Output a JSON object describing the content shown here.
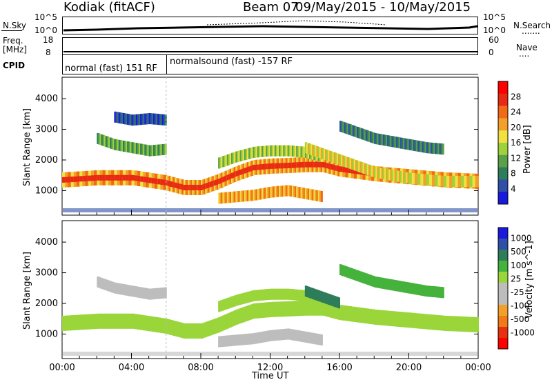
{
  "header": {
    "radar": "Kodiak (fitACF)",
    "beam": "Beam 07",
    "dates": "09/May/2015 - 10/May/2015"
  },
  "sky_panel": {
    "label": "N.Sky",
    "left_ticks": [
      "10^5",
      "10^0"
    ],
    "right_ticks": [
      "10^5",
      "10^0"
    ],
    "right_label": "N.Search",
    "right_dots": "......."
  },
  "freq_panel": {
    "label_line1": "Freq.",
    "label_line2": "[MHz]",
    "left_ticks": [
      "18",
      "8"
    ],
    "right_ticks": [
      "60",
      "0"
    ],
    "right_label": "Nave",
    "right_dots": "....",
    "cpid_label": "CPID"
  },
  "cpid": {
    "mode1": "normal (fast) 151 RF",
    "mode2": "normalsound (fast) -157 RF"
  },
  "colors": {
    "power": [
      "#1a1adc",
      "#2f4fa8",
      "#2e7d5a",
      "#5aa04a",
      "#9fd23a",
      "#f0e040",
      "#f3a02a",
      "#f06a18",
      "#e82a14",
      "#ff0000"
    ],
    "velocity": [
      "#1a1adc",
      "#2f4fa8",
      "#2e7d5a",
      "#45b23c",
      "#9ad53a",
      "#bdbdbd",
      "#bdbdbd",
      "#f3a02a",
      "#f07a18",
      "#e83010",
      "#ff0000"
    ]
  },
  "chart_data": [
    {
      "type": "heatmap",
      "title": "",
      "xlabel": "Time UT",
      "ylabel": "Slant Range [km]",
      "x_ticks": [
        "00:00",
        "04:00",
        "08:00",
        "12:00",
        "16:00",
        "20:00",
        "00:00"
      ],
      "y_ticks": [
        1000,
        2000,
        3000,
        4000
      ],
      "ylim": [
        200,
        4700
      ],
      "xlim_hours": [
        0,
        24
      ],
      "colorbar_label": "Power [dB]",
      "colorbar_ticks": [
        4,
        8,
        12,
        16,
        20,
        24,
        28
      ],
      "colorbar_range": [
        0,
        32
      ],
      "bands": [
        {
          "t": [
            0,
            2,
            4,
            6,
            7,
            8,
            9,
            10,
            11,
            12,
            13,
            14,
            15,
            16,
            18,
            20,
            22,
            24
          ],
          "r": [
            1350,
            1420,
            1420,
            1250,
            1100,
            1100,
            1300,
            1550,
            1750,
            1800,
            1820,
            1850,
            1850,
            1700,
            1550,
            1450,
            1350,
            1300
          ],
          "power": 20
        },
        {
          "t": [
            9,
            10,
            11,
            12,
            13,
            14,
            15
          ],
          "r": [
            750,
            800,
            850,
            950,
            1000,
            900,
            800
          ],
          "power": 22
        },
        {
          "t": [
            2,
            3,
            4,
            5,
            6
          ],
          "r": [
            2700,
            2500,
            2400,
            2300,
            2350
          ],
          "power": 12
        },
        {
          "t": [
            9,
            10,
            11,
            12,
            13,
            14,
            15
          ],
          "r": [
            1900,
            2100,
            2250,
            2300,
            2300,
            2250,
            2100
          ],
          "power": 14
        },
        {
          "t": [
            16,
            17,
            18,
            19,
            20,
            21,
            22
          ],
          "r": [
            3100,
            2900,
            2700,
            2600,
            2500,
            2400,
            2350
          ],
          "power": 8
        },
        {
          "t": [
            14,
            15,
            16,
            17,
            18,
            19,
            20,
            22,
            24
          ],
          "r": [
            2400,
            2200,
            2000,
            1800,
            1600,
            1500,
            1400,
            1300,
            1300
          ],
          "power": 18
        },
        {
          "t": [
            3,
            4,
            5,
            6
          ],
          "r": [
            3400,
            3300,
            3350,
            3300
          ],
          "power": 6
        }
      ]
    },
    {
      "type": "heatmap",
      "title": "",
      "xlabel": "Time UT",
      "ylabel": "Slant Range [km]",
      "x_ticks": [
        "00:00",
        "04:00",
        "08:00",
        "12:00",
        "16:00",
        "20:00",
        "00:00"
      ],
      "y_ticks": [
        1000,
        2000,
        3000,
        4000
      ],
      "ylim": [
        200,
        4700
      ],
      "xlim_hours": [
        0,
        24
      ],
      "colorbar_label": "Velocity [m s^-1]",
      "colorbar_ticks": [
        1000,
        500,
        100,
        25,
        -25,
        -100,
        -500,
        -1000
      ],
      "bands": [
        {
          "t": [
            0,
            2,
            4,
            6,
            7,
            8,
            9,
            10,
            11,
            12,
            13,
            14,
            15,
            16,
            18,
            20,
            22,
            24
          ],
          "r": [
            1350,
            1420,
            1420,
            1250,
            1100,
            1100,
            1300,
            1550,
            1750,
            1800,
            1820,
            1850,
            1850,
            1700,
            1550,
            1450,
            1350,
            1300
          ],
          "velocity": 0
        },
        {
          "t": [
            9,
            10,
            11,
            12,
            13,
            14,
            15
          ],
          "r": [
            750,
            800,
            850,
            950,
            1000,
            900,
            800
          ],
          "velocity": -50
        },
        {
          "t": [
            2,
            3,
            4,
            5,
            6
          ],
          "r": [
            2700,
            2500,
            2400,
            2300,
            2350
          ],
          "velocity": -80
        },
        {
          "t": [
            9,
            10,
            11,
            12,
            13,
            14,
            15
          ],
          "r": [
            1900,
            2100,
            2250,
            2300,
            2300,
            2250,
            2100
          ],
          "velocity": 0
        },
        {
          "t": [
            16,
            17,
            18,
            19,
            20,
            21,
            22
          ],
          "r": [
            3100,
            2900,
            2700,
            2600,
            2500,
            2400,
            2350
          ],
          "velocity": 60
        },
        {
          "t": [
            14,
            15,
            16
          ],
          "r": [
            2400,
            2200,
            2000
          ],
          "velocity": 150
        }
      ]
    }
  ]
}
